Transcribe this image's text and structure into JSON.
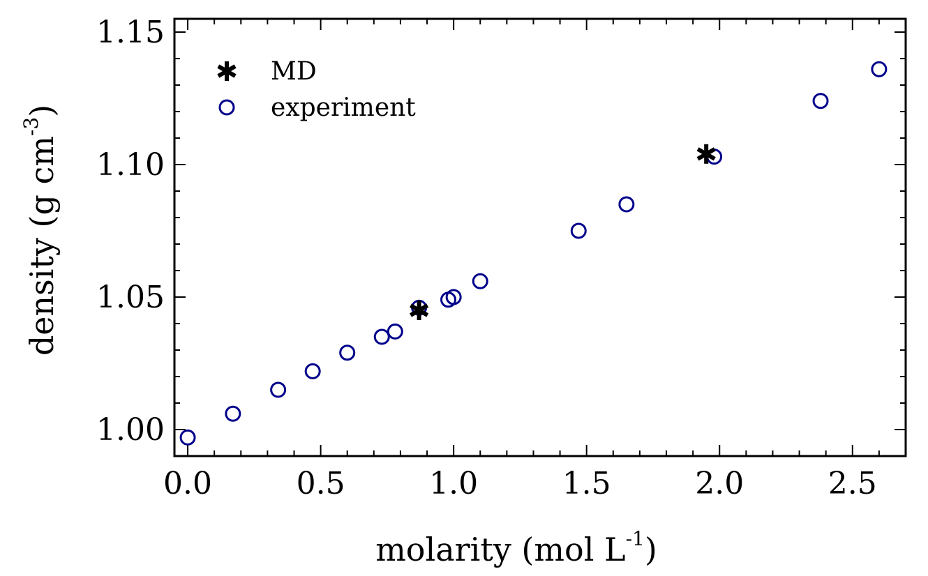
{
  "chart_data": {
    "type": "scatter",
    "title": "",
    "xlabel": {
      "main": "molarity (mol L",
      "sup": "-1",
      "tail": ")"
    },
    "ylabel": {
      "main": "density (g cm",
      "sup": "-3",
      "tail": ")"
    },
    "xlim": [
      -0.05,
      2.7
    ],
    "ylim": [
      0.99,
      1.155
    ],
    "xticks": [
      {
        "v": 0.0,
        "label": "0.0"
      },
      {
        "v": 0.5,
        "label": "0.5"
      },
      {
        "v": 1.0,
        "label": "1.0"
      },
      {
        "v": 1.5,
        "label": "1.5"
      },
      {
        "v": 2.0,
        "label": "2.0"
      },
      {
        "v": 2.5,
        "label": "2.5"
      }
    ],
    "yticks": [
      {
        "v": 1.0,
        "label": "1.00"
      },
      {
        "v": 1.05,
        "label": "1.05"
      },
      {
        "v": 1.1,
        "label": "1.10"
      },
      {
        "v": 1.15,
        "label": "1.15"
      }
    ],
    "legend_position": "top-left",
    "series": [
      {
        "name": "MD",
        "marker": "asterisk",
        "color": "#000000",
        "points": [
          {
            "x": 0.87,
            "y": 1.045
          },
          {
            "x": 1.95,
            "y": 1.104
          }
        ]
      },
      {
        "name": "experiment",
        "marker": "circle",
        "color": "#00008b",
        "points": [
          {
            "x": 0.0,
            "y": 0.997
          },
          {
            "x": 0.17,
            "y": 1.006
          },
          {
            "x": 0.34,
            "y": 1.015
          },
          {
            "x": 0.47,
            "y": 1.022
          },
          {
            "x": 0.6,
            "y": 1.029
          },
          {
            "x": 0.73,
            "y": 1.035
          },
          {
            "x": 0.78,
            "y": 1.037
          },
          {
            "x": 0.87,
            "y": 1.046
          },
          {
            "x": 0.98,
            "y": 1.049
          },
          {
            "x": 1.0,
            "y": 1.05
          },
          {
            "x": 1.1,
            "y": 1.056
          },
          {
            "x": 1.47,
            "y": 1.075
          },
          {
            "x": 1.65,
            "y": 1.085
          },
          {
            "x": 1.98,
            "y": 1.103
          },
          {
            "x": 2.38,
            "y": 1.124
          },
          {
            "x": 2.6,
            "y": 1.136
          }
        ]
      }
    ]
  }
}
